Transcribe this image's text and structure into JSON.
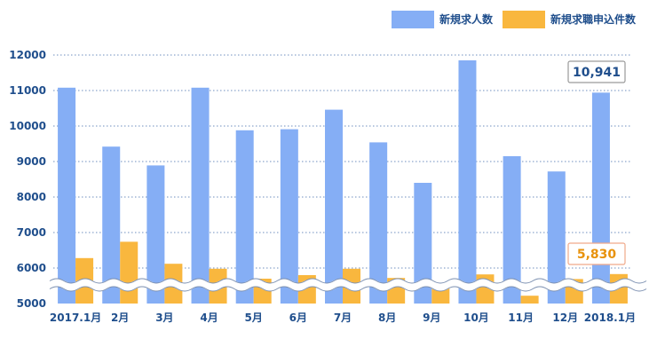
{
  "chart_data": {
    "type": "bar",
    "categories": [
      "2017.1月",
      "2月",
      "3月",
      "4月",
      "5月",
      "6月",
      "7月",
      "8月",
      "9月",
      "10月",
      "11月",
      "12月",
      "2018.1月"
    ],
    "series": [
      {
        "name": "新規求人数",
        "values": [
          11080,
          9420,
          8890,
          11080,
          9880,
          9910,
          10460,
          9540,
          8400,
          11850,
          9150,
          8720,
          10941
        ]
      },
      {
        "name": "新規求職申込件数",
        "values": [
          6280,
          6740,
          6120,
          5980,
          5700,
          5800,
          5980,
          5720,
          5580,
          5820,
          5220,
          5690,
          5830
        ]
      }
    ],
    "yticks": [
      "12000",
      "11000",
      "10000",
      "9000",
      "8000",
      "7000",
      "6000",
      "5000"
    ],
    "ylim": [
      5000,
      12000
    ],
    "legend": "top-right",
    "grid": true,
    "axis_break": true,
    "callouts": [
      {
        "series": 0,
        "index": 12,
        "label": "10,941"
      },
      {
        "series": 1,
        "index": 12,
        "label": "5,830"
      }
    ],
    "colors": {
      "series_0": "#85aef5",
      "series_1": "#f9b73e",
      "tick": "#1f4e8c",
      "grid": "#6f8fbf"
    }
  }
}
